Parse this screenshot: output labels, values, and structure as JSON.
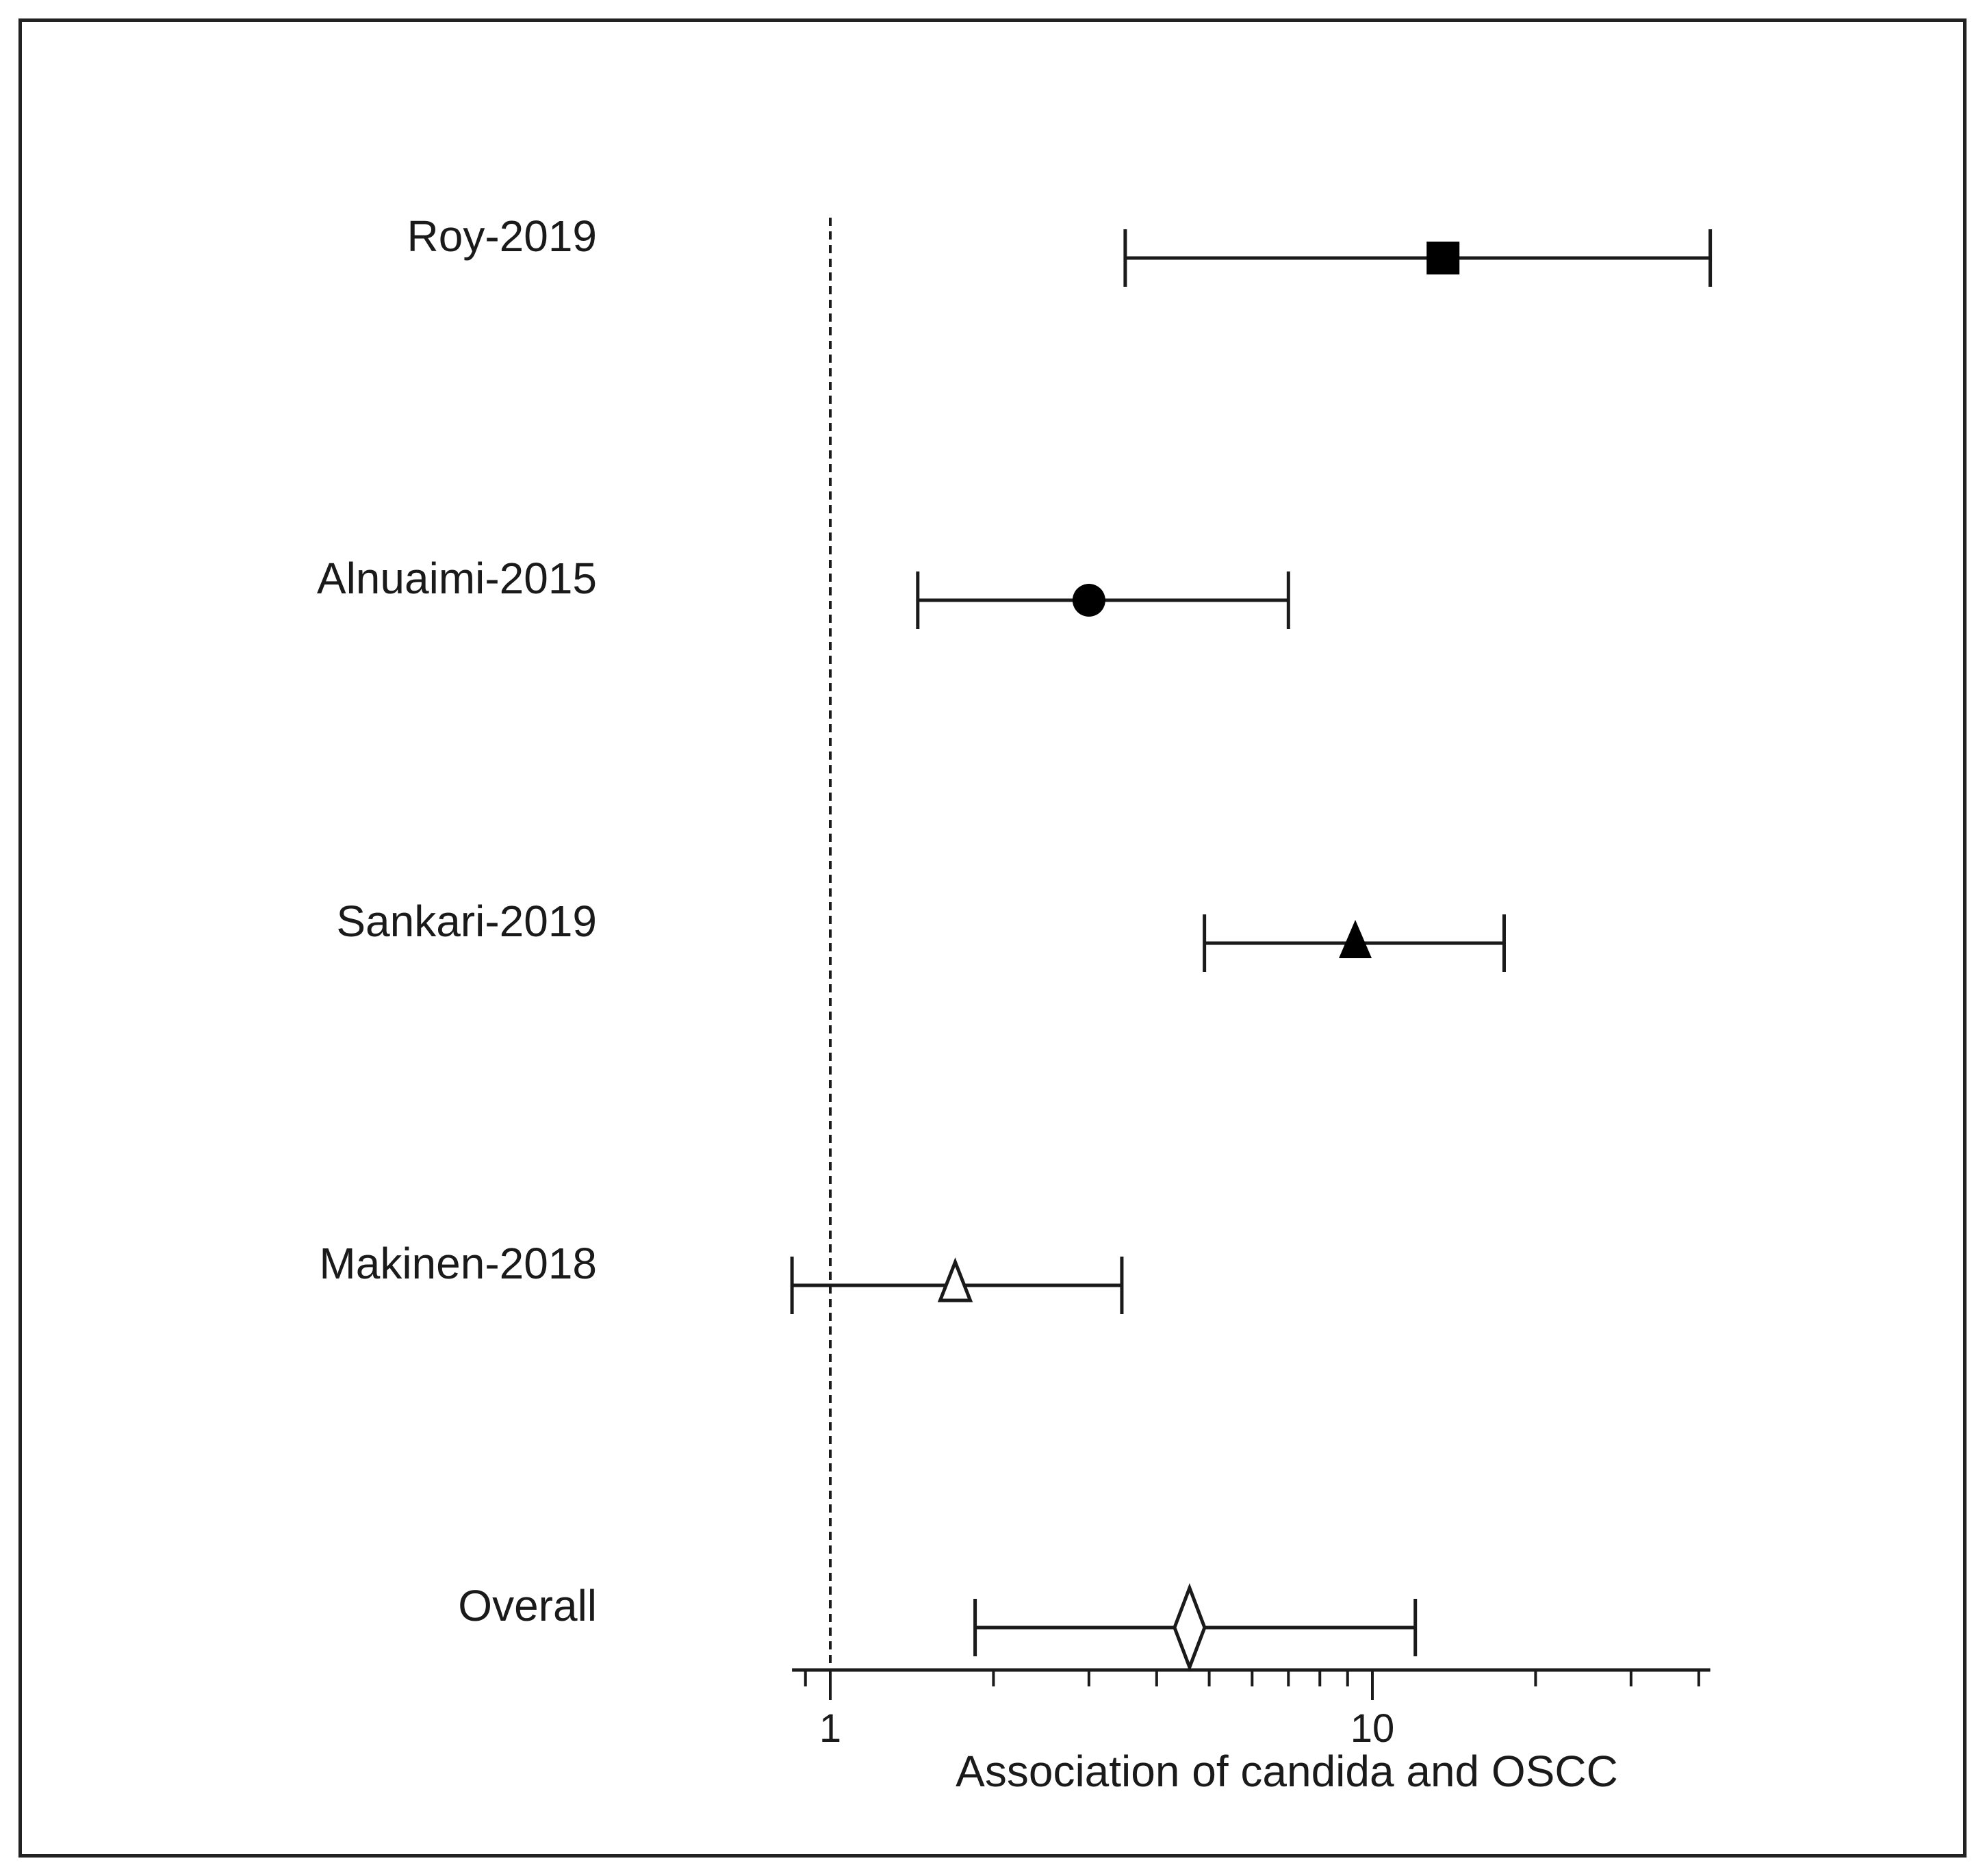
{
  "chart_data": {
    "type": "forest",
    "xlabel": "Association of candida and OSCC",
    "xscale": "log",
    "xlim": [
      0.85,
      42
    ],
    "reference_line": 1,
    "tick_labels": [
      "1",
      "10"
    ],
    "minor_ticks": [
      0.9,
      2,
      3,
      4,
      5,
      6,
      7,
      8,
      9,
      20,
      30,
      40
    ],
    "studies": [
      {
        "label": "Roy-2019",
        "estimate": 13.5,
        "ci_lower": 3.5,
        "ci_upper": 42,
        "marker": "filled-square"
      },
      {
        "label": "Alnuaimi-2015",
        "estimate": 3.0,
        "ci_lower": 1.45,
        "ci_upper": 7.0,
        "marker": "filled-circle"
      },
      {
        "label": "Sankari-2019",
        "estimate": 9.3,
        "ci_lower": 4.9,
        "ci_upper": 17.5,
        "marker": "filled-triangle"
      },
      {
        "label": "Makinen-2018",
        "estimate": 1.7,
        "ci_lower": 0.85,
        "ci_upper": 3.45,
        "marker": "open-triangle"
      },
      {
        "label": "Overall",
        "estimate": 4.6,
        "ci_lower": 1.85,
        "ci_upper": 12,
        "marker": "open-diamond"
      }
    ],
    "grid": false,
    "legend": "none"
  }
}
